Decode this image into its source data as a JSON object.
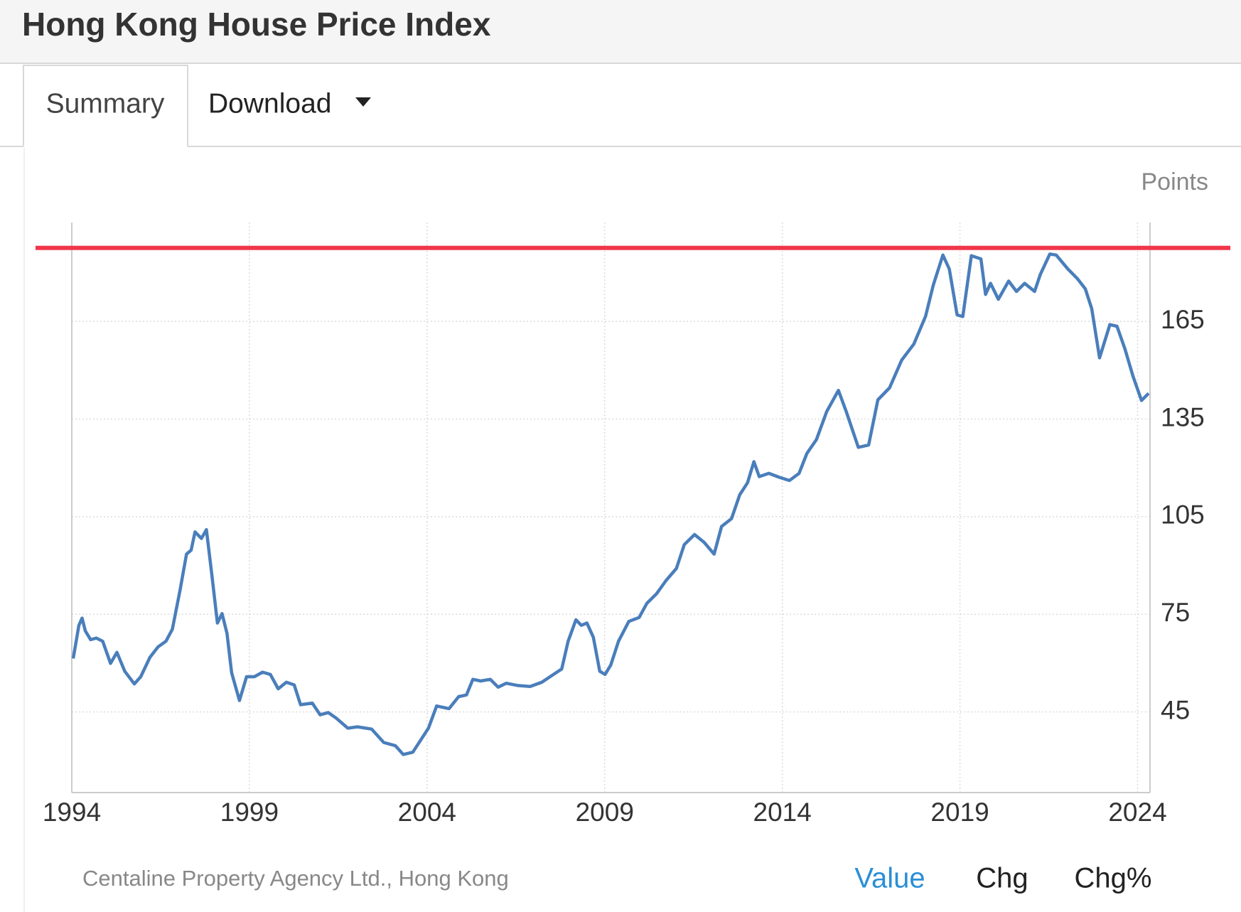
{
  "header": {
    "title": "Hong Kong House Price Index"
  },
  "tabs": [
    "Summary",
    "Download"
  ],
  "chart_data": {
    "type": "line",
    "y_axis_label": "Points",
    "source": "Centaline Property Agency Ltd., Hong Kong",
    "x": [
      1994.04,
      1994.2,
      1994.29,
      1994.38,
      1994.53,
      1994.69,
      1994.87,
      1995.09,
      1995.27,
      1995.49,
      1995.76,
      1995.94,
      1996.2,
      1996.43,
      1996.65,
      1996.83,
      1997.05,
      1997.23,
      1997.36,
      1997.47,
      1997.65,
      1997.79,
      1997.94,
      1998.1,
      1998.23,
      1998.37,
      1998.5,
      1998.72,
      1998.92,
      1999.14,
      1999.37,
      1999.59,
      1999.81,
      2000.04,
      2000.26,
      2000.44,
      2000.77,
      2000.99,
      2001.22,
      2001.44,
      2001.77,
      2002.04,
      2002.44,
      2002.78,
      2003.11,
      2003.33,
      2003.6,
      2003.82,
      2004.04,
      2004.27,
      2004.62,
      2004.89,
      2005.11,
      2005.29,
      2005.51,
      2005.78,
      2006.0,
      2006.23,
      2006.56,
      2006.9,
      2007.23,
      2007.56,
      2007.79,
      2007.97,
      2008.19,
      2008.34,
      2008.5,
      2008.68,
      2008.86,
      2009.01,
      2009.17,
      2009.39,
      2009.68,
      2009.97,
      2010.19,
      2010.46,
      2010.73,
      2011.02,
      2011.24,
      2011.53,
      2011.8,
      2012.08,
      2012.29,
      2012.57,
      2012.8,
      2013.02,
      2013.2,
      2013.35,
      2013.62,
      2013.91,
      2014.2,
      2014.47,
      2014.69,
      2014.96,
      2015.25,
      2015.58,
      2015.8,
      2016.14,
      2016.43,
      2016.69,
      2017.02,
      2017.36,
      2017.7,
      2018.03,
      2018.25,
      2018.52,
      2018.7,
      2018.92,
      2019.08,
      2019.32,
      2019.59,
      2019.72,
      2019.86,
      2020.08,
      2020.37,
      2020.59,
      2020.82,
      2021.1,
      2021.26,
      2021.53,
      2021.71,
      2022.04,
      2022.31,
      2022.53,
      2022.71,
      2022.93,
      2023.22,
      2023.42,
      2023.64,
      2023.87,
      2024.11,
      2024.31
    ],
    "series": [
      {
        "color": "#4a7ebb",
        "values": [
          61.4,
          71.6,
          73.8,
          69.9,
          67.2,
          67.7,
          66.7,
          59.9,
          63.3,
          57.5,
          53.6,
          55.8,
          61.8,
          65,
          66.7,
          70.4,
          82.5,
          93.5,
          94.7,
          100.3,
          98.3,
          101,
          87.4,
          72.3,
          75.2,
          69.1,
          57,
          48.5,
          55.8,
          55.8,
          57.2,
          56.5,
          52.1,
          54.1,
          53.3,
          47.2,
          47.7,
          44.1,
          44.8,
          43.1,
          40,
          40.4,
          39.7,
          35.6,
          34.6,
          31.9,
          32.6,
          36.3,
          40,
          46.8,
          46,
          49.7,
          50.2,
          55,
          54.5,
          55,
          52.6,
          53.8,
          53.1,
          52.8,
          54.1,
          56.5,
          58.2,
          66.7,
          73.3,
          71.6,
          72.3,
          67.9,
          57.5,
          56.5,
          59.4,
          66.7,
          72.8,
          74,
          78.4,
          81.3,
          85.4,
          89.1,
          96.4,
          99.5,
          97.1,
          93.5,
          102,
          104.4,
          111.7,
          115.4,
          121.9,
          117.3,
          118.3,
          117.1,
          116.1,
          118.3,
          124.4,
          128.7,
          137.3,
          143.8,
          137.3,
          126.3,
          127,
          140.9,
          144.6,
          153.1,
          158,
          166.5,
          176.2,
          185.4,
          181.1,
          167,
          166.5,
          185.2,
          184.2,
          173.3,
          176.7,
          171.8,
          177.4,
          174.2,
          176.7,
          174.2,
          179.4,
          185.7,
          185.4,
          181.1,
          178.1,
          175,
          168.9,
          153.8,
          164,
          163.5,
          156.7,
          148.2,
          140.7,
          142.9
        ]
      }
    ],
    "xlim": [
      1994,
      2024.35
    ],
    "xticks": [
      1994,
      1999,
      2004,
      2009,
      2014,
      2019,
      2024
    ],
    "ylim": [
      20.2,
      195.4
    ],
    "yticks": [
      45,
      75,
      105,
      135,
      165
    ],
    "grid": true,
    "reference_line": {
      "value": 187.6,
      "color": "#f0364a"
    }
  },
  "footer": {
    "views": [
      "Value",
      "Chg",
      "Chg%"
    ]
  }
}
